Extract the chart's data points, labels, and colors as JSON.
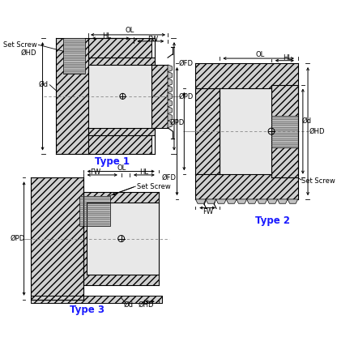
{
  "bg_color": "#ffffff",
  "label_color": "#1a1aff",
  "type1_label": "Type 1",
  "type2_label": "Type 2",
  "type3_label": "Type 3",
  "font_size_type": 8.5,
  "font_size_dim": 6.0
}
